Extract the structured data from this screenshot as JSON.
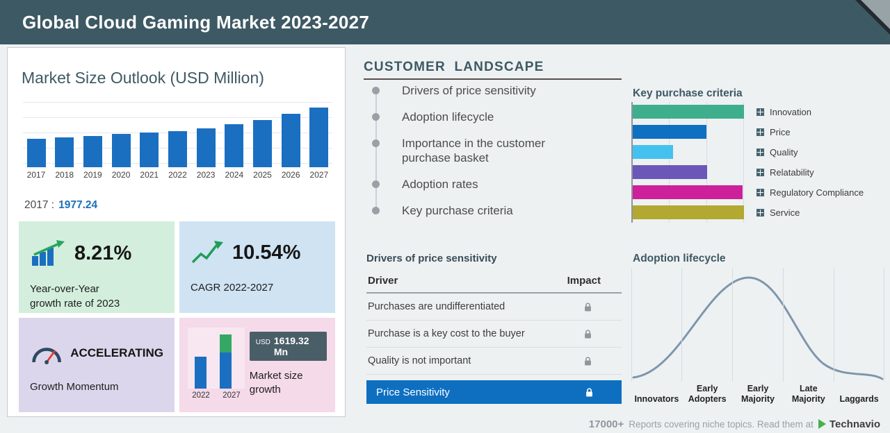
{
  "header": {
    "title": "Global Cloud Gaming Market 2023-2027"
  },
  "market_outlook": {
    "title": "Market Size Outlook (USD Million)",
    "annotation_year": "2017 :",
    "annotation_value": "1977.24"
  },
  "stat_cards": {
    "yoy": {
      "value": "8.21%",
      "label": "Year-over-Year\ngrowth rate of 2023"
    },
    "cagr": {
      "value": "10.54%",
      "label": "CAGR 2022-2027"
    },
    "momentum": {
      "title": "ACCELERATING",
      "label": "Growth Momentum"
    },
    "growth": {
      "badge_currency": "USD",
      "badge_value": "1619.32 Mn",
      "label": "Market size\ngrowth"
    }
  },
  "customer_landscape": {
    "title": "CUSTOMER LANDSCAPE",
    "items": [
      "Drivers of price sensitivity",
      "Adoption lifecycle",
      "Importance in the customer purchase basket",
      "Adoption rates",
      "Key purchase criteria"
    ]
  },
  "drivers_table": {
    "title": "Drivers of price sensitivity",
    "columns": [
      "Driver",
      "Impact"
    ],
    "rows": [
      "Purchases are undifferentiated",
      "Purchase is a key cost to the buyer",
      "Quality is not important"
    ],
    "highlight_row": "Price Sensitivity"
  },
  "footer": {
    "count": "17000+",
    "text": "Reports covering niche topics. Read them at",
    "brand": "Technavio"
  },
  "colors": {
    "header_bg": "#3d5964",
    "bar_blue": "#1b6fc0",
    "highlight_blue": "#0e6fc1",
    "card_green": "#d3eedd",
    "card_blue": "#cfe3f3",
    "card_purple": "#dcd6ec",
    "card_pink": "#f5dae9",
    "badge_bg": "#4a5e68",
    "curve_gray_blue": "#7e96ad",
    "logo_green": "#46b04a"
  },
  "chart_data": [
    {
      "id": "market_size_outlook",
      "type": "bar",
      "title": "Market Size Outlook (USD Million)",
      "categories": [
        "2017",
        "2018",
        "2019",
        "2020",
        "2021",
        "2022",
        "2023",
        "2024",
        "2025",
        "2026",
        "2027"
      ],
      "values": [
        1977.24,
        2070,
        2170,
        2275,
        2380,
        2490,
        2694,
        2955,
        3270,
        3660,
        4110
      ],
      "labeled_point": {
        "year": "2017",
        "value": 1977.24
      },
      "bar_color": "#1b6fc0",
      "xlabel": "",
      "ylabel": "USD Million",
      "ylim": [
        0,
        4300
      ],
      "grid": true
    },
    {
      "id": "key_purchase_criteria",
      "type": "bar",
      "orientation": "horizontal",
      "title": "Key purchase criteria",
      "categories": [
        "Innovation",
        "Price",
        "Quality",
        "Relatability",
        "Regulatory Compliance",
        "Service"
      ],
      "values": [
        100,
        66,
        36,
        67,
        99,
        100
      ],
      "colors": [
        "#3fae8c",
        "#0f6fc1",
        "#45c1f0",
        "#6a57b8",
        "#cd219c",
        "#b3a832"
      ],
      "xlim": [
        0,
        100
      ],
      "legend_position": "right",
      "grid": true
    },
    {
      "id": "market_size_growth",
      "type": "bar",
      "title": "Market size growth",
      "categories": [
        "2022",
        "2027"
      ],
      "values": [
        2490,
        4110
      ],
      "stacked_2027": {
        "base": 2490,
        "growth": 1620
      },
      "growth_label": "USD 1619.32 Mn"
    },
    {
      "id": "adoption_lifecycle",
      "type": "area",
      "shape": "bell-curve",
      "title": "Adoption lifecycle",
      "categories": [
        "Innovators",
        "Early\nAdopters",
        "Early\nMajority",
        "Late\nMajority",
        "Laggards"
      ],
      "grid": true
    }
  ]
}
